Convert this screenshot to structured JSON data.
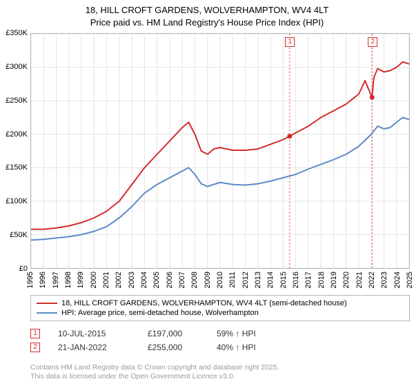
{
  "title_line1": "18, HILL CROFT GARDENS, WOLVERHAMPTON, WV4 4LT",
  "title_line2": "Price paid vs. HM Land Registry's House Price Index (HPI)",
  "chart": {
    "type": "line",
    "background_color": "#ffffff",
    "border_color": "#b6b6b6",
    "grid_color": "#e4e4e4",
    "y": {
      "min": 0,
      "max": 350000,
      "step": 50000,
      "tick_labels": [
        "£0",
        "£50K",
        "£100K",
        "£150K",
        "£200K",
        "£250K",
        "£300K",
        "£350K"
      ]
    },
    "x": {
      "min": 1995,
      "max": 2025,
      "ticks": [
        1995,
        1996,
        1997,
        1998,
        1999,
        2000,
        2001,
        2002,
        2003,
        2004,
        2005,
        2006,
        2007,
        2008,
        2009,
        2010,
        2011,
        2012,
        2013,
        2014,
        2015,
        2016,
        2017,
        2018,
        2019,
        2020,
        2021,
        2022,
        2023,
        2024,
        2025
      ]
    },
    "series": [
      {
        "id": "property",
        "color": "#d52a2a",
        "width": 2,
        "label": "18, HILL CROFT GARDENS, WOLVERHAMPTON, WV4 4LT (semi-detached house)",
        "points": [
          [
            1995,
            58000
          ],
          [
            1996,
            58000
          ],
          [
            1997,
            60000
          ],
          [
            1998,
            63000
          ],
          [
            1999,
            68000
          ],
          [
            2000,
            75000
          ],
          [
            2001,
            85000
          ],
          [
            2002,
            100000
          ],
          [
            2003,
            125000
          ],
          [
            2004,
            150000
          ],
          [
            2005,
            170000
          ],
          [
            2006,
            190000
          ],
          [
            2007,
            210000
          ],
          [
            2007.5,
            218000
          ],
          [
            2008,
            200000
          ],
          [
            2008.5,
            175000
          ],
          [
            2009,
            170000
          ],
          [
            2009.5,
            178000
          ],
          [
            2010,
            180000
          ],
          [
            2011,
            176000
          ],
          [
            2012,
            176000
          ],
          [
            2013,
            178000
          ],
          [
            2014,
            185000
          ],
          [
            2015,
            192000
          ],
          [
            2015.5,
            197000
          ],
          [
            2016,
            202000
          ],
          [
            2017,
            212000
          ],
          [
            2018,
            225000
          ],
          [
            2019,
            235000
          ],
          [
            2020,
            245000
          ],
          [
            2021,
            260000
          ],
          [
            2021.5,
            280000
          ],
          [
            2022.05,
            255000
          ],
          [
            2022.2,
            285000
          ],
          [
            2022.5,
            298000
          ],
          [
            2023,
            293000
          ],
          [
            2023.5,
            295000
          ],
          [
            2024,
            300000
          ],
          [
            2024.5,
            308000
          ],
          [
            2025,
            305000
          ]
        ]
      },
      {
        "id": "hpi",
        "color": "#5a8ac6",
        "width": 2,
        "label": "HPI: Average price, semi-detached house, Wolverhampton",
        "points": [
          [
            1995,
            42000
          ],
          [
            1996,
            43000
          ],
          [
            1997,
            45000
          ],
          [
            1998,
            47000
          ],
          [
            1999,
            50000
          ],
          [
            2000,
            55000
          ],
          [
            2001,
            62000
          ],
          [
            2002,
            75000
          ],
          [
            2003,
            92000
          ],
          [
            2004,
            112000
          ],
          [
            2005,
            125000
          ],
          [
            2006,
            135000
          ],
          [
            2007,
            145000
          ],
          [
            2007.5,
            150000
          ],
          [
            2008,
            140000
          ],
          [
            2008.5,
            126000
          ],
          [
            2009,
            122000
          ],
          [
            2010,
            128000
          ],
          [
            2011,
            125000
          ],
          [
            2012,
            124000
          ],
          [
            2013,
            126000
          ],
          [
            2014,
            130000
          ],
          [
            2015,
            135000
          ],
          [
            2016,
            140000
          ],
          [
            2017,
            148000
          ],
          [
            2018,
            155000
          ],
          [
            2019,
            162000
          ],
          [
            2020,
            170000
          ],
          [
            2021,
            182000
          ],
          [
            2022,
            200000
          ],
          [
            2022.5,
            212000
          ],
          [
            2023,
            208000
          ],
          [
            2023.5,
            210000
          ],
          [
            2024,
            218000
          ],
          [
            2024.5,
            225000
          ],
          [
            2025,
            222000
          ]
        ]
      }
    ],
    "sale_markers": [
      {
        "n": "1",
        "x": 2015.52,
        "y": 197000
      },
      {
        "n": "2",
        "x": 2022.06,
        "y": 255000
      }
    ],
    "vline_color": "#d52a2a",
    "vline_dash": "2,3"
  },
  "legend": {
    "series1_label": "18, HILL CROFT GARDENS, WOLVERHAMPTON, WV4 4LT (semi-detached house)",
    "series2_label": "HPI: Average price, semi-detached house, Wolverhampton"
  },
  "sales": [
    {
      "n": "1",
      "date": "10-JUL-2015",
      "price": "£197,000",
      "pct": "59%",
      "arrow": "↑",
      "suffix": "HPI"
    },
    {
      "n": "2",
      "date": "21-JAN-2022",
      "price": "£255,000",
      "pct": "40%",
      "arrow": "↑",
      "suffix": "HPI"
    }
  ],
  "footer_line1": "Contains HM Land Registry data © Crown copyright and database right 2025.",
  "footer_line2": "This data is licensed under the Open Government Licence v3.0."
}
